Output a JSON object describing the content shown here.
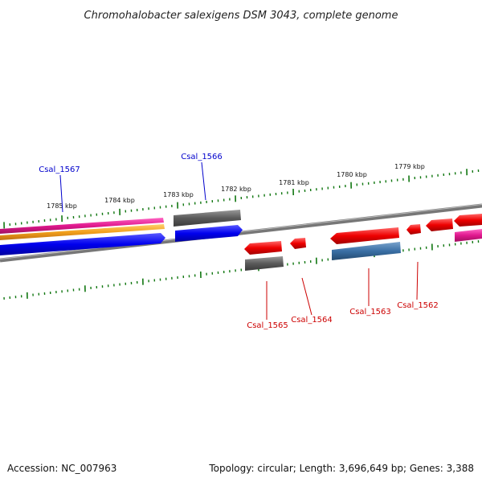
{
  "title": "Chromohalobacter salexigens DSM 3043, complete genome",
  "footer": {
    "accession": "Accession: NC_007963",
    "topology": "Topology: circular; Length: 3,696,649 bp; Genes: 3,388"
  },
  "ticks": [
    "1785 kbp",
    "1784 kbp",
    "1783 kbp",
    "1782 kbp",
    "1781 kbp",
    "1780 kbp",
    "1779 kbp"
  ],
  "gene_labels": {
    "forward": [
      "Csal_1567",
      "Csal_1566"
    ],
    "reverse": [
      "Csal_1565",
      "Csal_1564",
      "Csal_1563",
      "Csal_1562"
    ]
  },
  "colors": {
    "forward_label": "#0000cc",
    "reverse_label": "#cc0000",
    "backbone": "#777777",
    "tick": "#117711",
    "blue_gene": "#0000ee",
    "red_gene": "#ee0000",
    "gray_gene": "#555555",
    "steel_gene": "#3a6fa5",
    "magenta_gene": "#e0188e",
    "orange_gene": "#f2a01c"
  }
}
